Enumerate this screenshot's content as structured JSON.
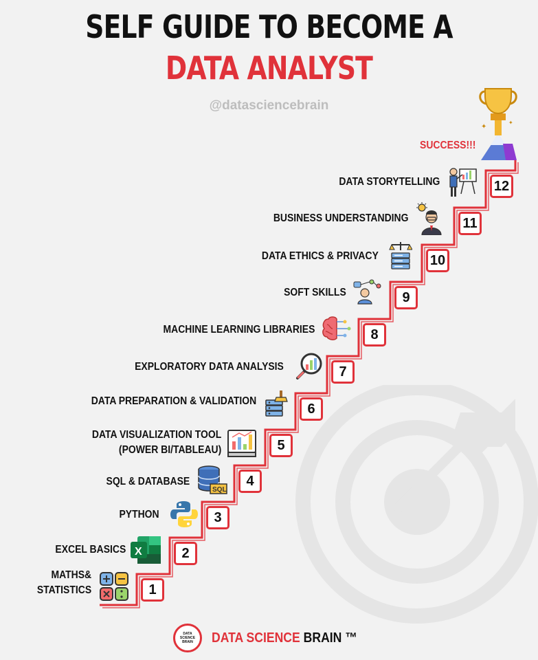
{
  "title": {
    "line1": "SELF GUIDE TO BECOME A",
    "line2": "DATA ANALYST"
  },
  "handle": "@datasciencebrain",
  "success_label": "SUCCESS!!!",
  "steps": [
    {
      "number": "1",
      "label": "MATHS&\nSTATISTICS",
      "icon": "math-operators-icon"
    },
    {
      "number": "2",
      "label": "EXCEL BASICS",
      "icon": "excel-icon"
    },
    {
      "number": "3",
      "label": "PYTHON",
      "icon": "python-icon"
    },
    {
      "number": "4",
      "label": "SQL & DATABASE",
      "icon": "sql-database-icon"
    },
    {
      "number": "5",
      "label": "DATA VISUALIZATION TOOL\n(POWER BI/TABLEAU)",
      "icon": "dashboard-chart-icon"
    },
    {
      "number": "6",
      "label": "DATA PREPARATION & VALIDATION",
      "icon": "server-brush-icon"
    },
    {
      "number": "7",
      "label": "EXPLORATORY DATA ANALYSIS",
      "icon": "magnifier-chart-icon"
    },
    {
      "number": "8",
      "label": "MACHINE LEARNING LIBRARIES",
      "icon": "brain-circuit-icon"
    },
    {
      "number": "9",
      "label": "SOFT SKILLS",
      "icon": "person-network-icon"
    },
    {
      "number": "10",
      "label": "DATA ETHICS & PRIVACY",
      "icon": "scale-server-icon"
    },
    {
      "number": "11",
      "label": "BUSINESS UNDERSTANDING",
      "icon": "businessman-idea-icon"
    },
    {
      "number": "12",
      "label": "DATA STORYTELLING",
      "icon": "presenter-board-icon"
    }
  ],
  "footer": {
    "logo_text": "DATA\nSCIENCE\nBRAIN",
    "brand_red": "DATA SCIENCE",
    "brand_black": " BRAIN ™"
  },
  "colors": {
    "accent": "#e0323a",
    "background": "#f2f2f2",
    "text": "#111111"
  }
}
